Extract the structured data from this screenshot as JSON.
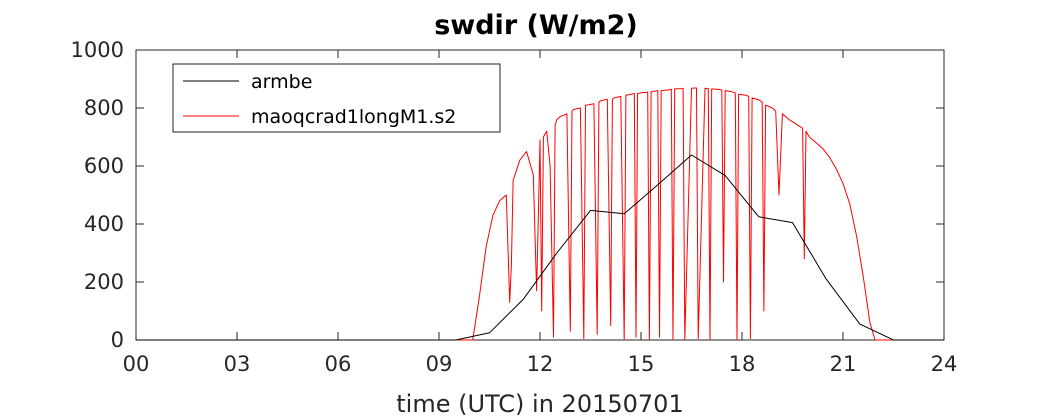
{
  "chart_data": {
    "type": "line",
    "title": "swdir  (W/m2)",
    "xlabel": "time (UTC) in 20150701",
    "ylabel": "",
    "xlim": [
      0,
      24
    ],
    "ylim": [
      0,
      1000
    ],
    "x_tick_labels": [
      "00",
      "03",
      "06",
      "09",
      "12",
      "15",
      "18",
      "21",
      "24"
    ],
    "y_tick_labels": [
      "0",
      "200",
      "400",
      "600",
      "800",
      "1000"
    ],
    "grid": false,
    "legend_position": "top-left",
    "series": [
      {
        "name": "armbe",
        "color": "#000000",
        "x": [
          0,
          9.5,
          10.5,
          11.5,
          12.5,
          13.5,
          14.5,
          15.5,
          16.5,
          17.5,
          18.5,
          19.5,
          20.5,
          21.5,
          22.5,
          23.5,
          24
        ],
        "y": [
          0,
          0,
          25,
          140,
          300,
          447,
          435,
          535,
          638,
          567,
          425,
          405,
          210,
          55,
          0,
          0,
          0
        ]
      },
      {
        "name": "maoqcrad1longM1.s2",
        "color": "#ff0000",
        "x": [
          0,
          10.0,
          10.2,
          10.4,
          10.6,
          10.8,
          11.0,
          11.1,
          11.15,
          11.2,
          11.4,
          11.6,
          11.8,
          11.9,
          11.95,
          12.0,
          12.05,
          12.1,
          12.2,
          12.3,
          12.4,
          12.45,
          12.5,
          12.6,
          12.8,
          12.9,
          12.95,
          13.0,
          13.2,
          13.3,
          13.35,
          13.4,
          13.6,
          13.7,
          13.75,
          13.8,
          14.0,
          14.1,
          14.15,
          14.2,
          14.4,
          14.5,
          14.55,
          14.6,
          14.8,
          14.85,
          14.9,
          15.0,
          15.2,
          15.25,
          15.3,
          15.4,
          15.5,
          15.55,
          15.6,
          15.8,
          15.9,
          15.95,
          16.0,
          16.2,
          16.25,
          16.3,
          16.5,
          16.6,
          16.65,
          16.7,
          16.9,
          17.0,
          17.05,
          17.1,
          17.3,
          17.4,
          17.45,
          17.5,
          17.7,
          17.8,
          17.85,
          17.9,
          18.1,
          18.2,
          18.25,
          18.3,
          18.5,
          18.6,
          18.65,
          18.7,
          18.9,
          19.0,
          19.1,
          19.2,
          19.4,
          19.6,
          19.8,
          19.85,
          19.9,
          20.0,
          20.2,
          20.4,
          20.6,
          20.8,
          21.0,
          21.2,
          21.4,
          21.6,
          21.8,
          21.95,
          22.05,
          24
        ],
        "y": [
          0,
          0,
          150,
          320,
          430,
          480,
          500,
          130,
          260,
          550,
          620,
          650,
          570,
          170,
          420,
          690,
          100,
          700,
          720,
          600,
          10,
          740,
          760,
          770,
          780,
          30,
          790,
          795,
          800,
          5,
          810,
          810,
          815,
          20,
          820,
          825,
          830,
          50,
          830,
          835,
          840,
          0,
          845,
          845,
          850,
          10,
          850,
          852,
          855,
          0,
          856,
          858,
          860,
          10,
          860,
          862,
          865,
          0,
          866,
          867,
          868,
          0,
          868,
          869,
          869,
          5,
          868,
          867,
          0,
          866,
          864,
          862,
          200,
          860,
          856,
          852,
          0,
          848,
          844,
          840,
          5,
          835,
          828,
          820,
          100,
          810,
          800,
          790,
          500,
          780,
          760,
          745,
          730,
          280,
          720,
          700,
          680,
          660,
          630,
          590,
          540,
          470,
          360,
          220,
          60,
          0,
          0,
          0
        ]
      }
    ]
  }
}
